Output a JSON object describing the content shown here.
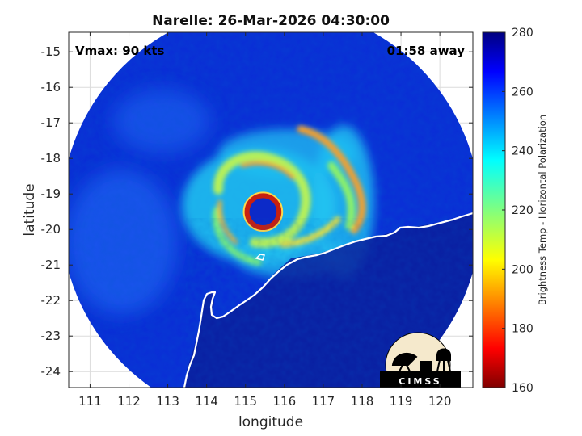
{
  "chart_data": {
    "type": "heatmap",
    "title": "Narelle: 26-Mar-2026 04:30:00",
    "xlabel": "longitude",
    "ylabel": "latitude",
    "xlim": [
      110.45,
      120.85
    ],
    "ylim": [
      -24.45,
      -14.45
    ],
    "xticks": [
      111,
      112,
      113,
      114,
      115,
      116,
      117,
      118,
      119,
      120
    ],
    "yticks": [
      -15,
      -16,
      -17,
      -18,
      -19,
      -20,
      -21,
      -22,
      -23,
      -24
    ],
    "grid": true,
    "annotations": {
      "left": "Vmax: 90 kts",
      "right": "01:58 away"
    },
    "storm_center": {
      "lon": 115.45,
      "lat": -19.5
    },
    "eye_radius_deg": 0.35,
    "swath_center": {
      "lon": 115.65,
      "lat": -19.6
    },
    "swath_radius_deg": 5.4,
    "colorbar": {
      "label": "Brightness Temp - Horizontal Polarization",
      "range": [
        160,
        280
      ],
      "ticks": [
        280,
        260,
        240,
        220,
        200,
        180,
        160
      ],
      "colormap": "jet"
    },
    "logo_text": "CIMSS"
  }
}
